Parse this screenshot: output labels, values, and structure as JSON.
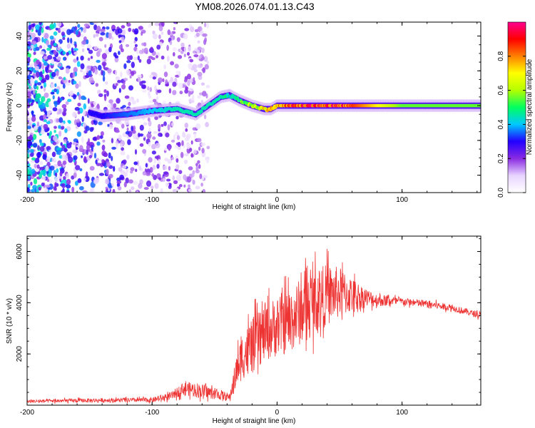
{
  "title": "YM08.2026.074.01.13.C43",
  "chart_data": [
    {
      "type": "heatmap",
      "title": "YM08.2026.074.01.13.C43",
      "xlabel": "Height of straight line (km)",
      "ylabel": "Frequency (Hz)",
      "xlim": [
        -200,
        163
      ],
      "ylim": [
        -50,
        48
      ],
      "xticks": [
        -200,
        -100,
        0,
        100
      ],
      "yticks": [
        -40,
        -20,
        0,
        20,
        40
      ],
      "colorbar": {
        "label": "Normalized spectral amplitude",
        "range": [
          0,
          1
        ],
        "ticks": [
          0.0,
          0.2,
          0.4,
          0.6,
          0.8
        ],
        "colors": [
          "#ffffff",
          "#e8d4ff",
          "#8a2be2",
          "#2200ff",
          "#00c8ff",
          "#00ff60",
          "#b4ff00",
          "#ffff00",
          "#ff8000",
          "#ff0000",
          "#ff0090"
        ]
      },
      "ridge": {
        "x": [
          -150,
          -140,
          -120,
          -100,
          -80,
          -65,
          -55,
          -45,
          -38,
          -30,
          -20,
          -10,
          -5,
          0,
          20,
          50,
          100,
          163
        ],
        "freq": [
          -4,
          -6,
          -5,
          -3,
          -2,
          -5,
          0,
          5,
          6,
          3,
          0,
          -2,
          -2,
          0,
          0,
          0,
          0,
          0
        ],
        "amplitude": [
          0.3,
          0.3,
          0.35,
          0.4,
          0.45,
          0.45,
          0.45,
          0.45,
          0.5,
          0.55,
          0.7,
          0.75,
          0.8,
          0.85,
          0.95,
          0.95,
          0.55,
          0.55
        ]
      },
      "noise_region": {
        "x_range": [
          -200,
          -55
        ],
        "freq_range": [
          -50,
          48
        ],
        "amplitude": 0.15
      }
    },
    {
      "type": "line",
      "xlabel": "Height of straight line (km)",
      "ylabel": "SNR (10 * v/v)",
      "xlim": [
        -200,
        163
      ],
      "ylim": [
        0,
        6600
      ],
      "xticks": [
        -200,
        -100,
        0,
        100
      ],
      "yticks": [
        2000,
        4000,
        6000
      ],
      "series": [
        {
          "name": "SNR",
          "color": "#ee3333",
          "x": [
            -200,
            -160,
            -120,
            -100,
            -85,
            -75,
            -65,
            -55,
            -45,
            -38,
            -32,
            -28,
            -20,
            -10,
            0,
            10,
            20,
            30,
            40,
            50,
            60,
            70,
            80,
            100,
            120,
            140,
            163
          ],
          "y": [
            150,
            180,
            200,
            200,
            350,
            650,
            600,
            500,
            400,
            300,
            1400,
            1900,
            2300,
            2800,
            3100,
            3300,
            3700,
            4100,
            4300,
            4400,
            4300,
            4200,
            4100,
            4050,
            3950,
            3800,
            3500
          ],
          "noise_amplitude": [
            60,
            80,
            80,
            100,
            150,
            250,
            300,
            250,
            200,
            150,
            700,
            900,
            1100,
            1100,
            1200,
            1300,
            1300,
            1300,
            1200,
            1000,
            700,
            400,
            250,
            150,
            150,
            130,
            120
          ]
        }
      ]
    }
  ]
}
